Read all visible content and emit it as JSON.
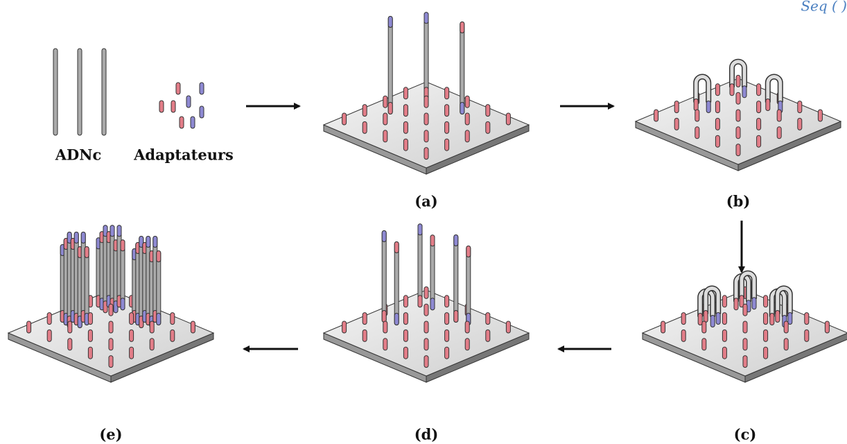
{
  "header": {
    "fragment": "Seq (   )"
  },
  "inputs": {
    "cdna": "ADNc",
    "adapters": "Adaptateurs"
  },
  "steps": [
    "(a)",
    "(b)",
    "(c)",
    "(d)",
    "(e)"
  ]
}
